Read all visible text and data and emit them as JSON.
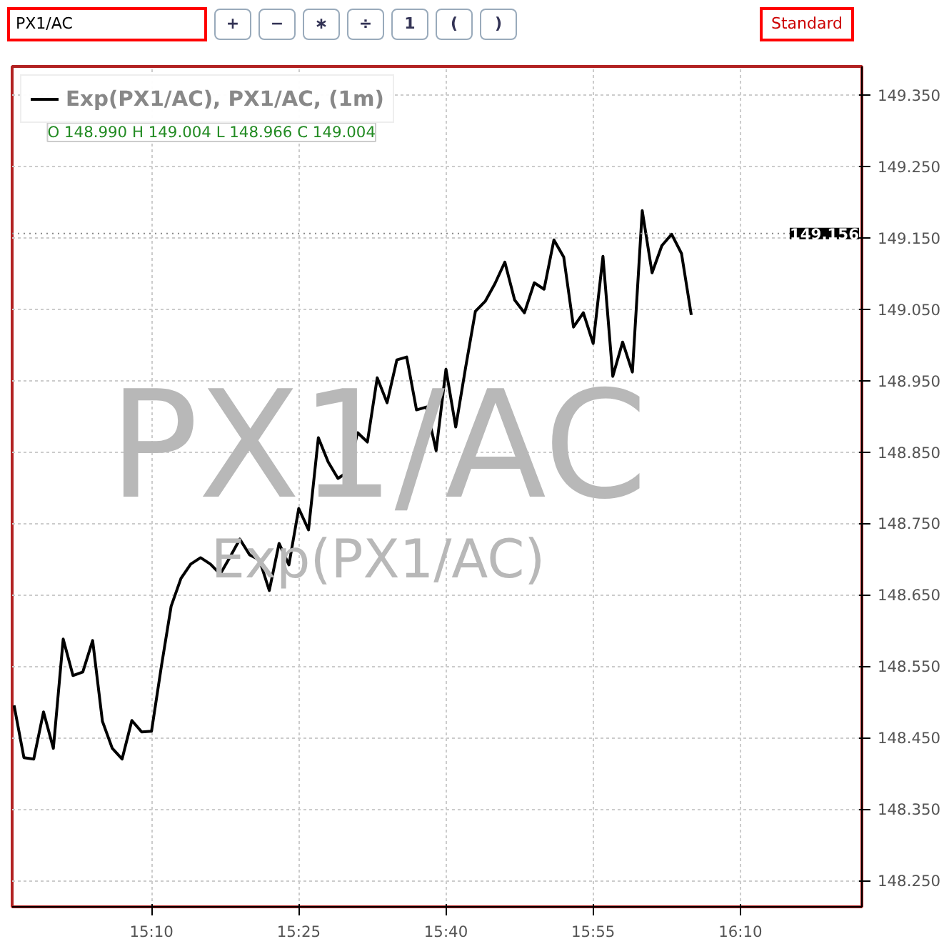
{
  "chart_data": {
    "type": "line",
    "subtitle": "O 148.990 H 149.004 L 148.966 C 149.004",
    "annotations": [
      "PX1/AC",
      "+",
      "−",
      "∗",
      "÷",
      "1",
      "(",
      ")",
      "Standard",
      "PX1/AC",
      "Exp(PX1/AC)"
    ],
    "x": [
      14.9333,
      14.95,
      14.9667,
      14.9833,
      15.0,
      15.0167,
      15.0333,
      15.05,
      15.0667,
      15.0833,
      15.1,
      15.1167,
      15.1333,
      15.15,
      15.1667,
      15.1833,
      15.2,
      15.2167,
      15.2333,
      15.25,
      15.2667,
      15.2833,
      15.3,
      15.3167,
      15.3333,
      15.35,
      15.3667,
      15.3833,
      15.4,
      15.4167,
      15.4333,
      15.45,
      15.4667,
      15.4833,
      15.5,
      15.5167,
      15.5333,
      15.55,
      15.5667,
      15.5833,
      15.6,
      15.6167,
      15.6333,
      15.65,
      15.6667,
      15.6833,
      15.7,
      15.7167,
      15.7333,
      15.75,
      15.7667,
      15.7833,
      15.8,
      15.8167,
      15.8333,
      15.85,
      15.8667,
      15.8833,
      15.9,
      15.9167,
      15.9333,
      15.95,
      15.9667,
      15.9833,
      16.0,
      16.0167,
      16.0333,
      16.05,
      16.0667,
      16.0833
    ],
    "series": [
      {
        "name": "Exp(PX1/AC), PX1/AC, (1m)",
        "color": "#000000",
        "values": [
          148.495,
          148.422,
          148.42,
          148.486,
          148.435,
          148.588,
          148.537,
          148.542,
          148.586,
          148.473,
          148.435,
          148.42,
          148.474,
          148.458,
          148.459,
          148.549,
          148.634,
          148.673,
          148.693,
          148.702,
          148.693,
          148.679,
          148.703,
          148.728,
          148.706,
          148.699,
          148.656,
          148.722,
          148.692,
          148.771,
          148.741,
          148.87,
          148.836,
          148.813,
          148.822,
          148.877,
          148.864,
          148.954,
          148.919,
          148.979,
          148.983,
          148.909,
          148.913,
          148.852,
          148.966,
          148.885,
          148.968,
          149.047,
          149.061,
          149.086,
          149.116,
          149.063,
          149.045,
          149.087,
          149.078,
          149.147,
          149.123,
          149.025,
          149.045,
          149.002,
          149.124,
          148.956,
          149.004,
          148.962,
          149.188,
          149.101,
          149.139,
          149.155,
          149.128,
          149.042
        ]
      }
    ],
    "xlim": [
      14.93,
      16.373
    ],
    "ylim": [
      148.213,
      149.39
    ],
    "xticks": [
      {
        "value": 15.1667,
        "label": "15:10"
      },
      {
        "value": 15.4167,
        "label": "15:25"
      },
      {
        "value": 15.6667,
        "label": "15:40"
      },
      {
        "value": 15.9167,
        "label": "15:55"
      },
      {
        "value": 16.1667,
        "label": "16:10"
      }
    ],
    "yticks": [
      {
        "value": 148.25,
        "label": "148.250"
      },
      {
        "value": 148.35,
        "label": "148.350"
      },
      {
        "value": 148.45,
        "label": "148.450"
      },
      {
        "value": 148.55,
        "label": "148.550"
      },
      {
        "value": 148.65,
        "label": "148.650"
      },
      {
        "value": 148.75,
        "label": "148.750"
      },
      {
        "value": 148.85,
        "label": "148.850"
      },
      {
        "value": 148.95,
        "label": "148.950"
      },
      {
        "value": 149.05,
        "label": "149.050"
      },
      {
        "value": 149.15,
        "label": "149.150"
      },
      {
        "value": 149.25,
        "label": "149.250"
      },
      {
        "value": 149.35,
        "label": "149.350"
      }
    ],
    "ref_lines": [
      {
        "axis": "y",
        "value": 149.156,
        "label": "149.156"
      }
    ],
    "grid": true,
    "legend": "top left",
    "line_style": "solid"
  }
}
